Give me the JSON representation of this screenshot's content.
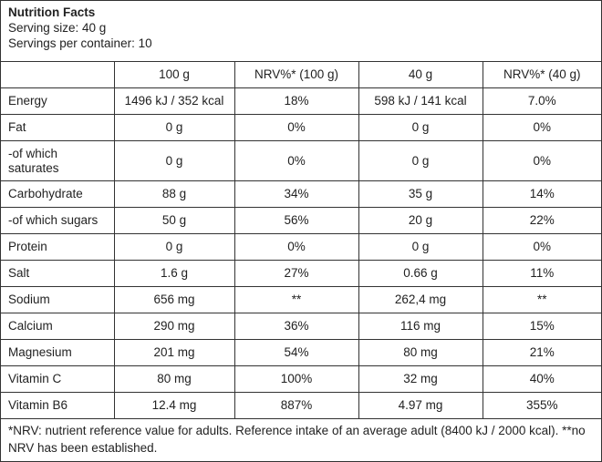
{
  "title": "Nutrition Facts",
  "serving_size": "Serving size: 40 g",
  "servings_per_container": "Servings per container: 10",
  "columns": [
    "",
    "100 g",
    "NRV%* (100 g)",
    "40 g",
    "NRV%* (40 g)"
  ],
  "rows": [
    [
      "Energy",
      "1496 kJ / 352 kcal",
      "18%",
      "598 kJ / 141 kcal",
      "7.0%"
    ],
    [
      "Fat",
      "0 g",
      "0%",
      "0 g",
      "0%"
    ],
    [
      "-of which saturates",
      "0 g",
      "0%",
      "0 g",
      "0%"
    ],
    [
      "Carbohydrate",
      "88 g",
      "34%",
      "35 g",
      "14%"
    ],
    [
      "-of which sugars",
      "50 g",
      "56%",
      "20 g",
      "22%"
    ],
    [
      "Protein",
      "0 g",
      "0%",
      "0 g",
      "0%"
    ],
    [
      "Salt",
      "1.6 g",
      "27%",
      "0.66 g",
      "11%"
    ],
    [
      "Sodium",
      "656 mg",
      "**",
      "262,4 mg",
      "**"
    ],
    [
      "Calcium",
      "290 mg",
      "36%",
      "116 mg",
      "15%"
    ],
    [
      "Magnesium",
      "201 mg",
      "54%",
      "80 mg",
      "21%"
    ],
    [
      "Vitamin C",
      "80 mg",
      "100%",
      "32 mg",
      "40%"
    ],
    [
      "Vitamin B6",
      "12.4 mg",
      "887%",
      "4.97 mg",
      "355%"
    ]
  ],
  "footnote": "*NRV: nutrient reference value for adults. Reference intake of an average adult (8400 kJ / 2000 kcal). **no NRV has been established."
}
